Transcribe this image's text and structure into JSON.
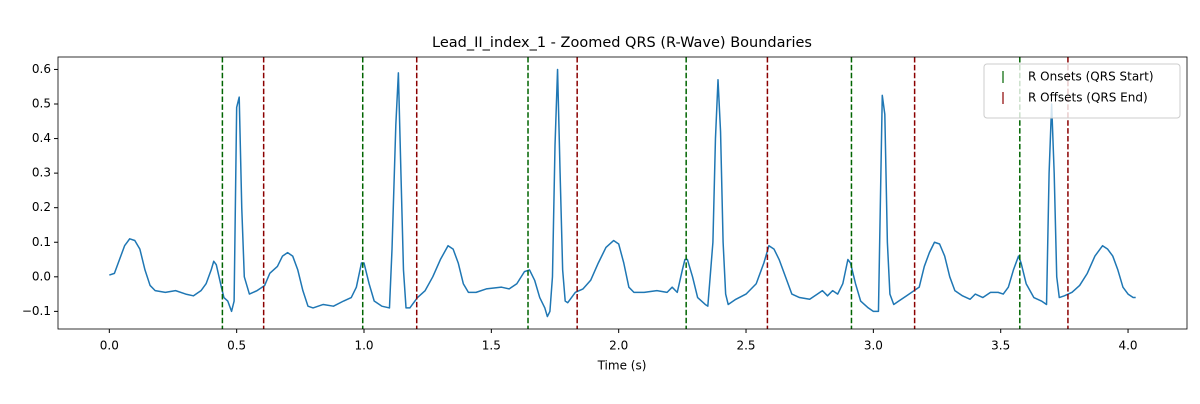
{
  "chart_data": {
    "type": "line",
    "title": "Lead_II_index_1 - Zoomed QRS (R-Wave) Boundaries",
    "xlabel": "Time (s)",
    "color": "#1f77b4",
    "x": [
      0.0,
      0.02,
      0.04,
      0.06,
      0.08,
      0.1,
      0.12,
      0.14,
      0.16,
      0.18,
      0.22,
      0.26,
      0.3,
      0.33,
      0.36,
      0.38,
      0.4,
      0.41,
      0.42,
      0.44,
      0.45,
      0.465,
      0.48,
      0.49,
      0.5,
      0.51,
      0.52,
      0.53,
      0.55,
      0.58,
      0.61,
      0.63,
      0.66,
      0.68,
      0.7,
      0.72,
      0.74,
      0.76,
      0.78,
      0.8,
      0.84,
      0.88,
      0.92,
      0.95,
      0.97,
      0.99,
      1.0,
      1.02,
      1.04,
      1.07,
      1.1,
      1.11,
      1.125,
      1.135,
      1.145,
      1.155,
      1.165,
      1.18,
      1.21,
      1.24,
      1.27,
      1.3,
      1.33,
      1.35,
      1.37,
      1.39,
      1.41,
      1.44,
      1.48,
      1.54,
      1.57,
      1.6,
      1.63,
      1.65,
      1.67,
      1.69,
      1.71,
      1.72,
      1.73,
      1.74,
      1.75,
      1.76,
      1.77,
      1.78,
      1.79,
      1.8,
      1.83,
      1.86,
      1.89,
      1.92,
      1.95,
      1.98,
      2.0,
      2.02,
      2.04,
      2.06,
      2.1,
      2.15,
      2.19,
      2.21,
      2.23,
      2.25,
      2.26,
      2.27,
      2.29,
      2.31,
      2.34,
      2.35,
      2.37,
      2.38,
      2.39,
      2.4,
      2.41,
      2.42,
      2.43,
      2.46,
      2.5,
      2.54,
      2.57,
      2.59,
      2.61,
      2.63,
      2.66,
      2.68,
      2.71,
      2.75,
      2.78,
      2.8,
      2.82,
      2.84,
      2.86,
      2.88,
      2.9,
      2.91,
      2.93,
      2.95,
      2.98,
      3.0,
      3.02,
      3.035,
      3.045,
      3.055,
      3.065,
      3.08,
      3.1,
      3.13,
      3.16,
      3.18,
      3.2,
      3.22,
      3.24,
      3.26,
      3.28,
      3.3,
      3.32,
      3.35,
      3.38,
      3.4,
      3.43,
      3.46,
      3.49,
      3.51,
      3.53,
      3.55,
      3.57,
      3.58,
      3.6,
      3.63,
      3.66,
      3.68,
      3.69,
      3.7,
      3.71,
      3.72,
      3.73,
      3.75,
      3.78,
      3.81,
      3.84,
      3.87,
      3.9,
      3.92,
      3.94,
      3.96,
      3.98,
      4.0,
      4.02,
      4.03
    ],
    "values": [
      0.005,
      0.01,
      0.05,
      0.09,
      0.11,
      0.105,
      0.08,
      0.02,
      -0.025,
      -0.04,
      -0.045,
      -0.04,
      -0.05,
      -0.055,
      -0.04,
      -0.02,
      0.02,
      0.045,
      0.035,
      -0.03,
      -0.06,
      -0.07,
      -0.1,
      -0.07,
      0.49,
      0.52,
      0.2,
      0.0,
      -0.05,
      -0.04,
      -0.025,
      0.01,
      0.03,
      0.06,
      0.07,
      0.06,
      0.02,
      -0.04,
      -0.085,
      -0.09,
      -0.08,
      -0.085,
      -0.07,
      -0.06,
      -0.03,
      0.04,
      0.04,
      -0.02,
      -0.07,
      -0.085,
      -0.09,
      0.08,
      0.44,
      0.59,
      0.3,
      0.02,
      -0.09,
      -0.09,
      -0.06,
      -0.04,
      0.0,
      0.05,
      0.09,
      0.08,
      0.04,
      -0.02,
      -0.045,
      -0.045,
      -0.035,
      -0.03,
      -0.035,
      -0.02,
      0.015,
      0.02,
      -0.01,
      -0.06,
      -0.09,
      -0.115,
      -0.1,
      0.0,
      0.38,
      0.6,
      0.3,
      0.02,
      -0.07,
      -0.075,
      -0.045,
      -0.035,
      -0.01,
      0.04,
      0.085,
      0.105,
      0.095,
      0.04,
      -0.03,
      -0.045,
      -0.045,
      -0.04,
      -0.045,
      -0.03,
      -0.045,
      0.02,
      0.05,
      0.05,
      0.0,
      -0.06,
      -0.08,
      -0.085,
      0.1,
      0.4,
      0.57,
      0.42,
      0.1,
      -0.05,
      -0.08,
      -0.065,
      -0.05,
      -0.02,
      0.04,
      0.09,
      0.08,
      0.05,
      -0.01,
      -0.05,
      -0.06,
      -0.065,
      -0.05,
      -0.04,
      -0.055,
      -0.04,
      -0.05,
      -0.02,
      0.05,
      0.04,
      -0.02,
      -0.07,
      -0.09,
      -0.1,
      -0.1,
      0.525,
      0.47,
      0.1,
      -0.05,
      -0.08,
      -0.07,
      -0.055,
      -0.04,
      -0.03,
      0.03,
      0.07,
      0.1,
      0.095,
      0.06,
      0.0,
      -0.04,
      -0.055,
      -0.065,
      -0.05,
      -0.06,
      -0.045,
      -0.045,
      -0.05,
      -0.03,
      0.02,
      0.06,
      0.04,
      -0.02,
      -0.06,
      -0.07,
      -0.08,
      0.3,
      0.5,
      0.3,
      0.0,
      -0.06,
      -0.055,
      -0.045,
      -0.025,
      0.01,
      0.06,
      0.09,
      0.08,
      0.06,
      0.02,
      -0.03,
      -0.05,
      -0.06,
      -0.06
    ],
    "vlines": [
      {
        "name": "R Onsets (QRS Start)",
        "color": "#006400",
        "x": [
          0.444,
          0.995,
          1.644,
          2.265,
          2.914,
          3.575
        ]
      },
      {
        "name": "R Offsets (QRS End)",
        "color": "#8b0000",
        "x": [
          0.606,
          1.207,
          1.837,
          2.584,
          3.162,
          3.764
        ]
      }
    ],
    "xlim": [
      -0.2015,
      4.2315
    ],
    "xticks": [
      {
        "value": 0,
        "label": "0.0"
      },
      0.5,
      {
        "value": 1,
        "label": "1.0"
      },
      1.5,
      {
        "value": 2,
        "label": "2.0"
      },
      2.5,
      {
        "value": 3,
        "label": "3.0"
      },
      3.5,
      {
        "value": 4,
        "label": "4.0"
      }
    ],
    "ylim": [
      -0.151,
      0.636
    ],
    "yticks": [
      {
        "value": -0.1,
        "label": "−0.1"
      },
      {
        "value": 0,
        "label": "0.0"
      },
      0.1,
      0.2,
      0.3,
      0.4,
      0.5,
      0.6
    ],
    "legend": "upper right"
  }
}
